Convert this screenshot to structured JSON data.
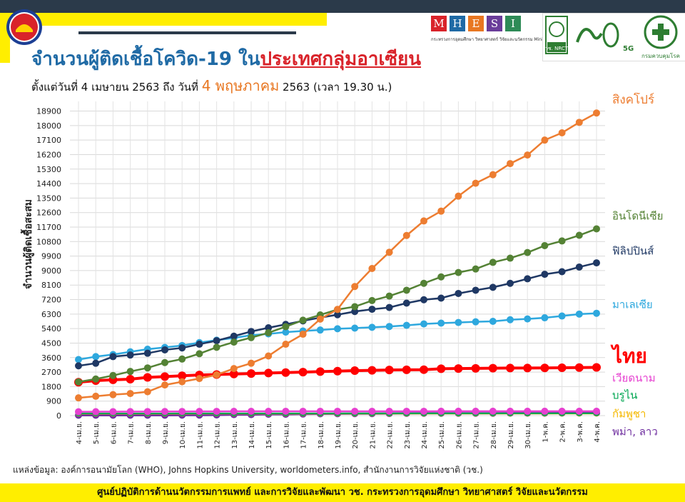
{
  "header": {
    "title_prefix": "จำนวนผู้ติดเชื้อโควิด-19 ใน",
    "title_highlight": "ประเทศกลุ่มอาเซียน",
    "subtitle_prefix": "ตั้งแต่วันที่ 4 เมษายน 2563 ถึง วันที่ ",
    "subtitle_date": "4 พฤษภาคม",
    "subtitle_suffix": " 2563 (เวลา 19.30 น.)"
  },
  "logos": {
    "mhesi_letters": [
      "M",
      "H",
      "E",
      "S",
      "I"
    ],
    "mhesi_colors": [
      "#d9232a",
      "#1f6aa5",
      "#e87722",
      "#6a3d9a",
      "#2e8b57"
    ],
    "mhesi_caption": "กระทรวงการอุดมศึกษา วิทยาศาสตร์ วิจัยและนวัตกรรม Ministry of Higher Education, Science, Research and Innovation",
    "nrct_label": "วช. NRCT",
    "anniv_label": "5G",
    "ddc_label": "กรมควบคุมโรค"
  },
  "chart_data": {
    "type": "line",
    "ylabel": "จำนวนผู้ติดเชื้อสะสม",
    "yticks": [
      0,
      900,
      1800,
      2700,
      3600,
      4500,
      5400,
      6300,
      7200,
      8100,
      9000,
      9900,
      10800,
      11700,
      12600,
      13500,
      14400,
      15300,
      16200,
      17100,
      18000,
      18900
    ],
    "ylim": [
      0,
      19500
    ],
    "grid": true,
    "categories": [
      "4-เม.ย.",
      "5-เม.ย.",
      "6-เม.ย.",
      "7-เม.ย.",
      "8-เม.ย.",
      "9-เม.ย.",
      "10-เม.ย.",
      "11-เม.ย.",
      "12-เม.ย.",
      "13-เม.ย.",
      "14-เม.ย.",
      "15-เม.ย.",
      "16-เม.ย.",
      "17-เม.ย.",
      "18-เม.ย.",
      "19-เม.ย.",
      "20-เม.ย.",
      "21-เม.ย.",
      "22-เม.ย.",
      "23-เม.ย.",
      "24-เม.ย.",
      "25-เม.ย.",
      "26-เม.ย.",
      "27-เม.ย.",
      "28-เม.ย.",
      "29-เม.ย.",
      "30-เม.ย.",
      "1-พ.ค.",
      "2-พ.ค.",
      "3-พ.ค.",
      "4-พ.ค."
    ],
    "series": [
      {
        "name": "สิงคโปร์",
        "color": "#ed7d31",
        "width": 2.5,
        "r": 5,
        "labelSize": 17,
        "values": [
          1100,
          1200,
          1300,
          1370,
          1480,
          1900,
          2100,
          2300,
          2530,
          2920,
          3250,
          3700,
          4430,
          5050,
          5990,
          6590,
          8010,
          9130,
          10140,
          11180,
          12080,
          12690,
          13620,
          14420,
          14950,
          15640,
          16170,
          17100,
          17550,
          18200,
          18780
        ]
      },
      {
        "name": "อินโดนีเซีย",
        "color": "#548235",
        "width": 2.5,
        "r": 5,
        "labelSize": 15,
        "values": [
          2090,
          2270,
          2490,
          2740,
          2960,
          3290,
          3510,
          3840,
          4240,
          4560,
          4840,
          5140,
          5520,
          5920,
          6250,
          6580,
          6760,
          7140,
          7420,
          7780,
          8210,
          8610,
          8880,
          9100,
          9510,
          9770,
          10120,
          10550,
          10840,
          11190,
          11590
        ]
      },
      {
        "name": "ฟิลิปปินส์",
        "color": "#1f3864",
        "width": 2.5,
        "r": 5,
        "labelSize": 15,
        "values": [
          3090,
          3250,
          3660,
          3760,
          3870,
          4080,
          4200,
          4430,
          4650,
          4930,
          5220,
          5450,
          5660,
          5880,
          6080,
          6260,
          6460,
          6600,
          6710,
          6980,
          7190,
          7290,
          7580,
          7780,
          7960,
          8210,
          8490,
          8770,
          8930,
          9220,
          9480
        ]
      },
      {
        "name": "มาเลเซีย",
        "color": "#2ea8de",
        "width": 2.5,
        "r": 5,
        "labelSize": 15,
        "values": [
          3480,
          3660,
          3790,
          3960,
          4120,
          4230,
          4350,
          4530,
          4680,
          4820,
          4990,
          5070,
          5180,
          5250,
          5310,
          5390,
          5430,
          5480,
          5530,
          5600,
          5690,
          5740,
          5780,
          5820,
          5850,
          5950,
          6000,
          6070,
          6180,
          6300,
          6350
        ]
      },
      {
        "name": "ไทย",
        "color": "#ff0000",
        "width": 4,
        "r": 6,
        "labelSize": 28,
        "values": [
          2070,
          2170,
          2220,
          2260,
          2370,
          2420,
          2470,
          2520,
          2550,
          2580,
          2610,
          2640,
          2670,
          2700,
          2730,
          2760,
          2790,
          2810,
          2830,
          2840,
          2850,
          2910,
          2920,
          2930,
          2940,
          2950,
          2950,
          2960,
          2970,
          2980,
          2990
        ]
      },
      {
        "name": "เวียดนาม",
        "color": "#e640d0",
        "width": 2.5,
        "r": 5,
        "labelSize": 15,
        "values": [
          240,
          241,
          245,
          249,
          251,
          255,
          257,
          258,
          262,
          265,
          266,
          267,
          268,
          268,
          268,
          268,
          268,
          268,
          268,
          268,
          268,
          270,
          270,
          270,
          270,
          270,
          270,
          270,
          271,
          271,
          271
        ]
      },
      {
        "name": "บรูไน",
        "color": "#00a651",
        "width": 2,
        "r": 4,
        "labelSize": 15,
        "values": [
          134,
          135,
          135,
          135,
          135,
          135,
          136,
          136,
          136,
          136,
          136,
          136,
          136,
          137,
          138,
          138,
          138,
          138,
          138,
          138,
          138,
          138,
          138,
          138,
          138,
          138,
          138,
          138,
          138,
          141,
          141
        ]
      },
      {
        "name": "กัมพูชา",
        "color": "#f5b800",
        "width": 2,
        "r": 4,
        "labelSize": 15,
        "values": [
          114,
          114,
          115,
          115,
          117,
          117,
          119,
          120,
          120,
          122,
          122,
          122,
          122,
          122,
          122,
          122,
          122,
          122,
          122,
          122,
          122,
          122,
          122,
          122,
          122,
          122,
          122,
          122,
          122,
          122,
          122
        ]
      },
      {
        "name": "พม่า, ลาว",
        "color": "#7030a0",
        "width": 3,
        "r": 5,
        "labelSize": 15,
        "values": [
          21,
          22,
          22,
          22,
          22,
          23,
          27,
          28,
          41,
          62,
          63,
          85,
          85,
          98,
          111,
          119,
          121,
          121,
          127,
          139,
          144,
          145,
          146,
          146,
          146,
          150,
          151,
          151,
          155,
          161,
          161
        ]
      }
    ]
  },
  "source": "แหล่งข้อมูล: องค์การอนามัยโลก (WHO), Johns Hopkins University, worldometers.info, สำนักงานการวิจัยแห่งชาติ (วช.)",
  "footer": "ศูนย์ปฏิบัติการด้านนวัตกรรมการแพทย์ และการวิจัยและพัฒนา  วช.   กระทรวงการอุดมศึกษา วิทยาศาสตร์ วิจัยและนวัตกรรม"
}
